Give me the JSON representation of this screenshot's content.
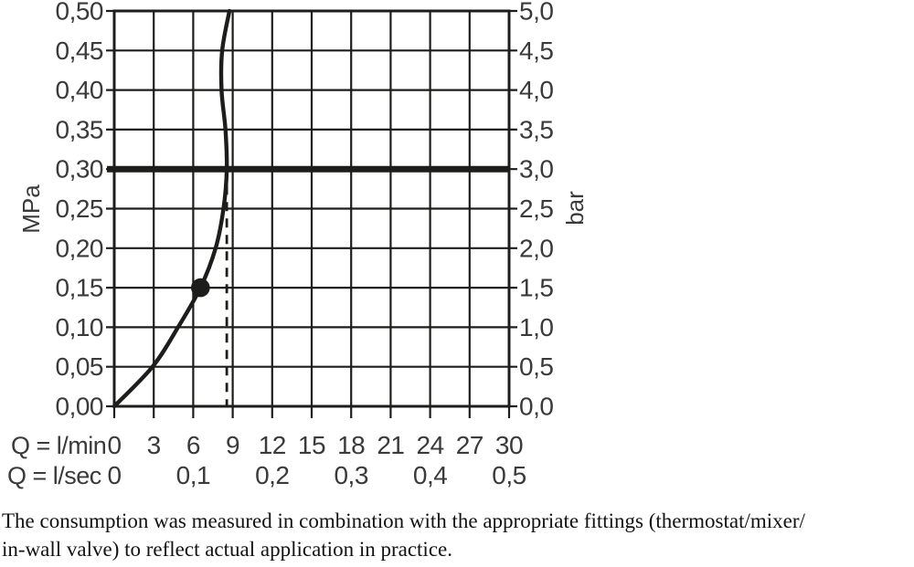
{
  "chart_data": {
    "type": "line",
    "title": "",
    "grid": true,
    "x_axis": {
      "label_lmin": "Q = l/min",
      "label_lsec": "Q = l/sec",
      "range_lmin": [
        0,
        30
      ],
      "tick_labels_lmin": [
        "0",
        "3",
        "6",
        "9",
        "12",
        "15",
        "18",
        "21",
        "24",
        "27",
        "30"
      ],
      "tick_labels_lsec": [
        {
          "q": 0,
          "label": "0"
        },
        {
          "q": 6,
          "label": "0,1"
        },
        {
          "q": 12,
          "label": "0,2"
        },
        {
          "q": 18,
          "label": "0,3"
        },
        {
          "q": 24,
          "label": "0,4"
        },
        {
          "q": 30,
          "label": "0,5"
        }
      ]
    },
    "y_left": {
      "unit": "MPa",
      "range": [
        0,
        0.5
      ],
      "tick_labels": [
        "0,50",
        "0,45",
        "0,40",
        "0,35",
        "0,30",
        "0,25",
        "0,20",
        "0,15",
        "0,10",
        "0,05",
        "0,00"
      ]
    },
    "y_right": {
      "unit": "bar",
      "range": [
        0,
        5
      ],
      "tick_labels": [
        "5,0",
        "4,5",
        "4,0",
        "3,5",
        "3,0",
        "2,5",
        "2,0",
        "1,5",
        "1,0",
        "0,5",
        "0,0"
      ]
    },
    "curve": {
      "pressure_MPa": [
        0,
        0.05,
        0.1,
        0.15,
        0.2,
        0.25,
        0.3,
        0.35,
        0.4,
        0.45,
        0.5
      ],
      "flow_lmin": [
        0,
        2.9,
        4.85,
        6.55,
        7.7,
        8.3,
        8.55,
        8.45,
        8.15,
        8.2,
        8.75
      ]
    },
    "marker_point": {
      "flow_lmin": 6.55,
      "pressure_MPa": 0.15
    },
    "reference_pressure_line_MPa": 0.3,
    "dashed_flow_line_lmin": 8.55
  },
  "caption": {
    "line1": "The consumption was measured in combination with the appropriate fittings (thermostat/mixer/",
    "line2": "in-wall valve) to reflect actual application in practice."
  },
  "colors": {
    "line": "#1d1d1b",
    "text": "#3a3a3a",
    "caption": "#121212",
    "background": "#ffffff"
  }
}
